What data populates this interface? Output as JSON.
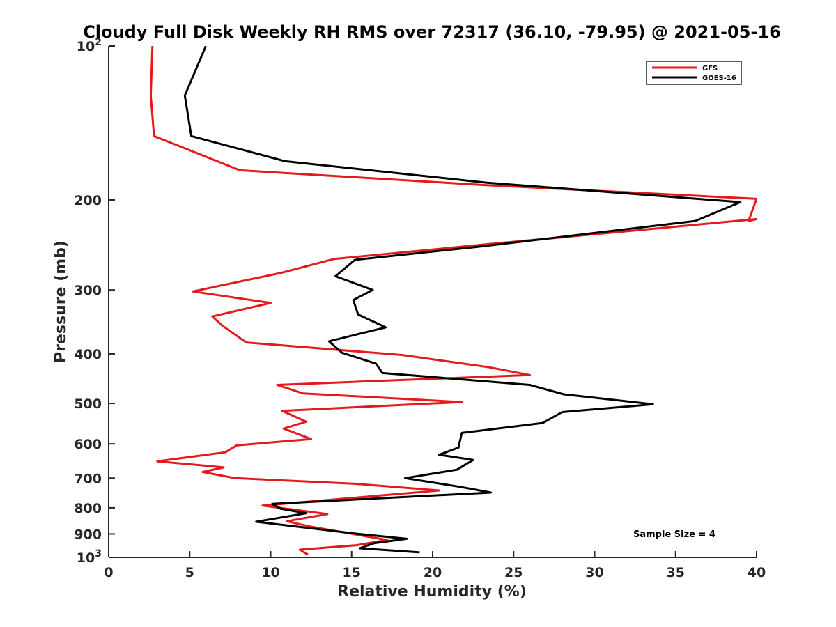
{
  "chart_data": {
    "type": "line",
    "title": "Cloudy Full Disk Weekly RH RMS over 72317 (36.10, -79.95) @ 2021-05-16",
    "xlabel": "Relative Humidity (%)",
    "ylabel": "Pressure (mb)",
    "xlim": [
      0,
      40
    ],
    "ylim": [
      100,
      1000
    ],
    "y_scale": "log",
    "y_reversed": true,
    "grid": false,
    "legend_position": "top-right",
    "annotation": "Sample Size = 4",
    "x_ticks": [
      "0",
      "5",
      "10",
      "15",
      "20",
      "25",
      "30",
      "35",
      "40"
    ],
    "x_tick_values": [
      0,
      5,
      10,
      15,
      20,
      25,
      30,
      35,
      40
    ],
    "y_ticks": [
      {
        "value": 100,
        "base": "10",
        "exp": "2"
      },
      {
        "value": 200,
        "text": "200"
      },
      {
        "value": 300,
        "text": "300"
      },
      {
        "value": 400,
        "text": "400"
      },
      {
        "value": 500,
        "text": "500"
      },
      {
        "value": 600,
        "text": "600"
      },
      {
        "value": 700,
        "text": "700"
      },
      {
        "value": 800,
        "text": "800"
      },
      {
        "value": 900,
        "text": "900"
      },
      {
        "value": 1000,
        "base": "10",
        "exp": "3"
      }
    ],
    "series": [
      {
        "name": "GFS",
        "color": "#e41a1c",
        "points": [
          [
            2.7,
            100
          ],
          [
            2.6,
            125
          ],
          [
            2.8,
            150
          ],
          [
            8.1,
            175
          ],
          [
            23.1,
            187
          ],
          [
            40.0,
            199
          ],
          [
            39.5,
            220
          ],
          [
            40.0,
            218
          ],
          [
            23.5,
            244
          ],
          [
            13.9,
            261
          ],
          [
            10.6,
            278
          ],
          [
            5.2,
            302
          ],
          [
            10.0,
            318
          ],
          [
            6.4,
            338
          ],
          [
            7.0,
            352
          ],
          [
            8.5,
            380
          ],
          [
            18.1,
            402
          ],
          [
            23.5,
            425
          ],
          [
            26.0,
            440
          ],
          [
            10.4,
            460
          ],
          [
            12.0,
            478
          ],
          [
            21.8,
            497
          ],
          [
            10.7,
            517
          ],
          [
            12.2,
            543
          ],
          [
            10.8,
            560
          ],
          [
            12.5,
            587
          ],
          [
            7.9,
            604
          ],
          [
            7.2,
            623
          ],
          [
            3.0,
            649
          ],
          [
            7.1,
            667
          ],
          [
            5.8,
            681
          ],
          [
            7.8,
            700
          ],
          [
            15.2,
            718
          ],
          [
            20.4,
            740
          ],
          [
            9.5,
            792
          ],
          [
            13.5,
            823
          ],
          [
            11.0,
            850
          ],
          [
            12.3,
            869
          ],
          [
            17.2,
            925
          ],
          [
            15.3,
            947
          ],
          [
            11.8,
            966
          ],
          [
            12.3,
            988
          ]
        ]
      },
      {
        "name": "GOES-16",
        "color": "#000000",
        "points": [
          [
            6.0,
            100
          ],
          [
            4.7,
            125
          ],
          [
            5.1,
            150
          ],
          [
            10.9,
            168
          ],
          [
            23.3,
            185
          ],
          [
            39.0,
            202
          ],
          [
            36.2,
            220
          ],
          [
            22.8,
            247
          ],
          [
            15.2,
            262
          ],
          [
            14.0,
            282
          ],
          [
            16.3,
            300
          ],
          [
            15.1,
            314
          ],
          [
            15.4,
            335
          ],
          [
            17.1,
            355
          ],
          [
            13.6,
            378
          ],
          [
            14.4,
            398
          ],
          [
            16.5,
            418
          ],
          [
            16.9,
            436
          ],
          [
            26.0,
            460
          ],
          [
            28.1,
            480
          ],
          [
            33.6,
            502
          ],
          [
            28.0,
            520
          ],
          [
            26.8,
            546
          ],
          [
            21.8,
            571
          ],
          [
            21.7,
            590
          ],
          [
            21.6,
            610
          ],
          [
            20.4,
            630
          ],
          [
            22.5,
            645
          ],
          [
            21.5,
            674
          ],
          [
            18.3,
            700
          ],
          [
            21.7,
            728
          ],
          [
            23.6,
            747
          ],
          [
            10.1,
            786
          ],
          [
            10.6,
            803
          ],
          [
            12.2,
            820
          ],
          [
            9.1,
            852
          ],
          [
            15.3,
            899
          ],
          [
            18.4,
            920
          ],
          [
            16.4,
            938
          ],
          [
            15.5,
            960
          ],
          [
            19.2,
            978
          ]
        ]
      }
    ]
  }
}
